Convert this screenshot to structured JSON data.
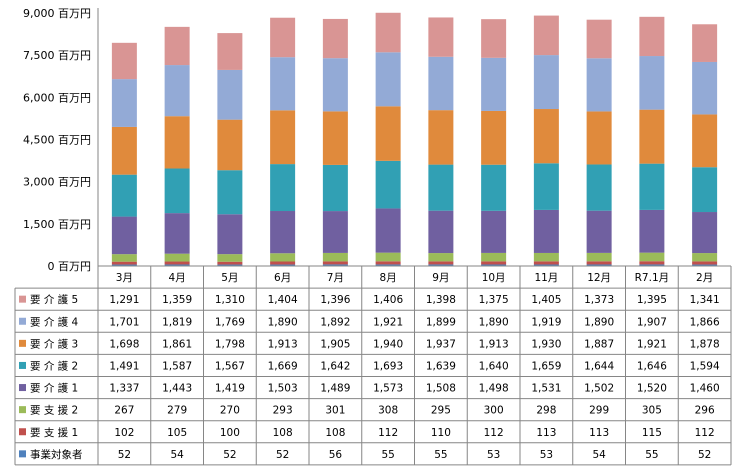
{
  "chart_data": {
    "type": "bar",
    "stacked": true,
    "categories": [
      "3月",
      "4月",
      "5月",
      "6月",
      "7月",
      "8月",
      "9月",
      "10月",
      "11月",
      "12月",
      "R7.1月",
      "2月"
    ],
    "y_ticks": [
      "0 百万円",
      "1,500 百万円",
      "3,000 百万円",
      "4,500 百万円",
      "6,000 百万円",
      "7,500 百万円",
      "9,000 百万円"
    ],
    "ylim": [
      0,
      9000
    ],
    "grid": false,
    "series": [
      {
        "name": "事業対象者",
        "color": "#4f81bd",
        "values": [
          52,
          54,
          52,
          52,
          56,
          55,
          55,
          53,
          53,
          54,
          55,
          52
        ],
        "labels": [
          "52",
          "54",
          "52",
          "52",
          "56",
          "55",
          "55",
          "53",
          "53",
          "54",
          "55",
          "52"
        ]
      },
      {
        "name": "要 支 援 1",
        "color": "#c0504d",
        "values": [
          102,
          105,
          100,
          108,
          108,
          112,
          110,
          112,
          113,
          113,
          115,
          112
        ],
        "labels": [
          "102",
          "105",
          "100",
          "108",
          "108",
          "112",
          "110",
          "112",
          "113",
          "113",
          "115",
          "112"
        ]
      },
      {
        "name": "要 支 援 2",
        "color": "#9bbb59",
        "values": [
          267,
          279,
          270,
          293,
          301,
          308,
          295,
          300,
          298,
          299,
          305,
          296
        ],
        "labels": [
          "267",
          "279",
          "270",
          "293",
          "301",
          "308",
          "295",
          "300",
          "298",
          "299",
          "305",
          "296"
        ]
      },
      {
        "name": "要 介 護 1",
        "color": "#7060a0",
        "values": [
          1337,
          1443,
          1419,
          1503,
          1489,
          1573,
          1508,
          1498,
          1531,
          1502,
          1520,
          1460
        ],
        "labels": [
          "1,337",
          "1,443",
          "1,419",
          "1,503",
          "1,489",
          "1,573",
          "1,508",
          "1,498",
          "1,531",
          "1,502",
          "1,520",
          "1,460"
        ]
      },
      {
        "name": "要 介 護 2",
        "color": "#31a0b4",
        "values": [
          1491,
          1587,
          1567,
          1669,
          1642,
          1693,
          1639,
          1640,
          1659,
          1644,
          1646,
          1594
        ],
        "labels": [
          "1,491",
          "1,587",
          "1,567",
          "1,669",
          "1,642",
          "1,693",
          "1,639",
          "1,640",
          "1,659",
          "1,644",
          "1,646",
          "1,594"
        ]
      },
      {
        "name": "要 介 護 3",
        "color": "#e08a3c",
        "values": [
          1698,
          1861,
          1798,
          1913,
          1905,
          1940,
          1937,
          1913,
          1930,
          1887,
          1921,
          1878
        ],
        "labels": [
          "1,698",
          "1,861",
          "1,798",
          "1,913",
          "1,905",
          "1,940",
          "1,937",
          "1,913",
          "1,930",
          "1,887",
          "1,921",
          "1,878"
        ]
      },
      {
        "name": "要 介 護 4",
        "color": "#93aad6",
        "values": [
          1701,
          1819,
          1769,
          1890,
          1892,
          1921,
          1899,
          1890,
          1919,
          1890,
          1907,
          1866
        ],
        "labels": [
          "1,701",
          "1,819",
          "1,769",
          "1,890",
          "1,892",
          "1,921",
          "1,899",
          "1,890",
          "1,919",
          "1,890",
          "1,907",
          "1,866"
        ]
      },
      {
        "name": "要 介 護 5",
        "color": "#d99594",
        "values": [
          1291,
          1359,
          1310,
          1404,
          1396,
          1406,
          1398,
          1375,
          1405,
          1373,
          1395,
          1341
        ],
        "labels": [
          "1,291",
          "1,359",
          "1,310",
          "1,404",
          "1,396",
          "1,406",
          "1,398",
          "1,375",
          "1,405",
          "1,373",
          "1,395",
          "1,341"
        ]
      }
    ]
  }
}
